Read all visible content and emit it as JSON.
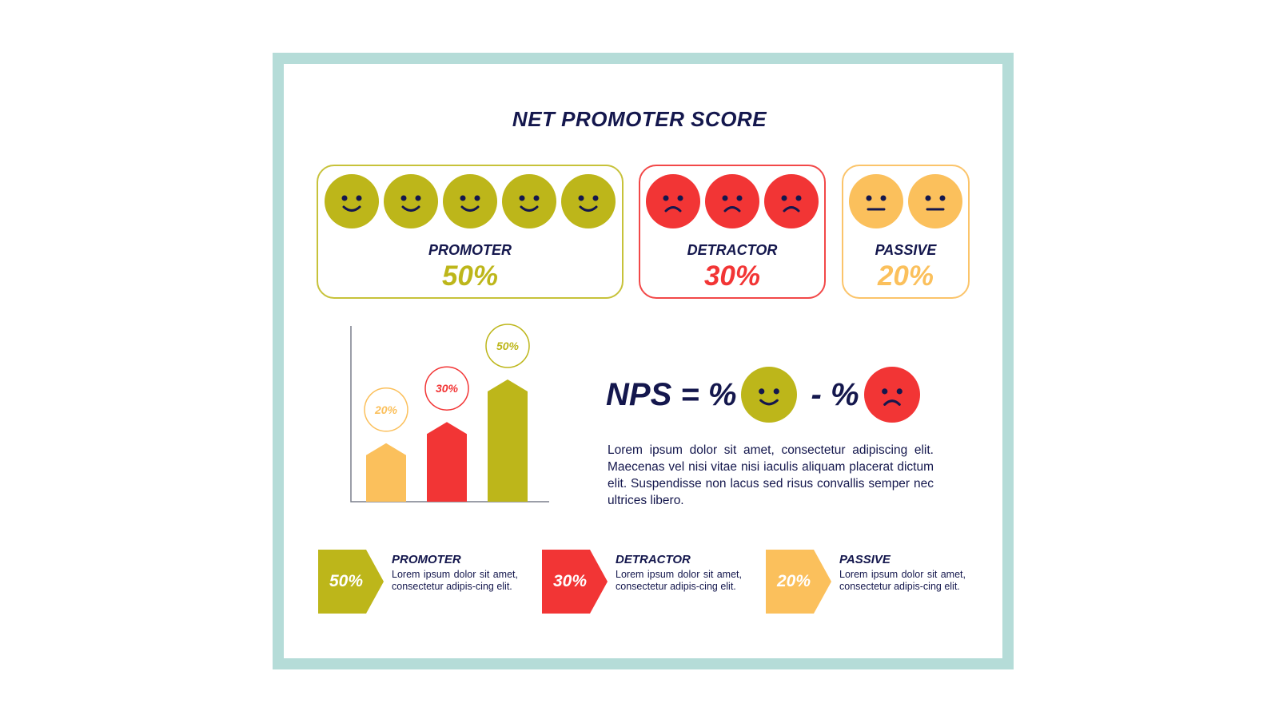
{
  "title": "NET PROMOTER SCORE",
  "colors": {
    "promoter": "#bdb61a",
    "detractor": "#f23535",
    "passive": "#fbc05c",
    "navy": "#14174d",
    "frame": "#b5dcd8"
  },
  "cards": [
    {
      "label": "PROMOTER",
      "pct": "50%",
      "icon": "smiley-face-icon"
    },
    {
      "label": "DETRACTOR",
      "pct": "30%",
      "icon": "sad-face-icon"
    },
    {
      "label": "PASSIVE",
      "pct": "20%",
      "icon": "neutral-face-icon"
    }
  ],
  "nps": {
    "lhs": "NPS = %",
    "minus": " - %"
  },
  "paragraph": "Lorem ipsum dolor sit amet, consectetur adipiscing elit. Maecenas vel nisi vitae nisi iaculis aliquam placerat dictum elit. Suspendisse non lacus sed risus convallis semper nec ultrices libero.",
  "legend": [
    {
      "value": "50%",
      "title": "PROMOTER",
      "text": "Lorem ipsum dolor sit amet, consectetur adipis-cing elit."
    },
    {
      "value": "30%",
      "title": "DETRACTOR",
      "text": "Lorem ipsum dolor sit amet, consectetur adipis-cing elit."
    },
    {
      "value": "20%",
      "title": "PASSIVE",
      "text": "Lorem ipsum dolor sit amet, consectetur adipis-cing elit."
    }
  ],
  "chart_data": {
    "type": "bar",
    "categories": [
      "",
      "",
      ""
    ],
    "values": [
      20,
      30,
      50
    ],
    "labels": [
      "20%",
      "30%",
      "50%"
    ],
    "colors": [
      "#fbc05c",
      "#f23535",
      "#bdb61a"
    ],
    "ylim": [
      0,
      70
    ],
    "grid": false,
    "title": "",
    "xlabel": "",
    "ylabel": ""
  }
}
